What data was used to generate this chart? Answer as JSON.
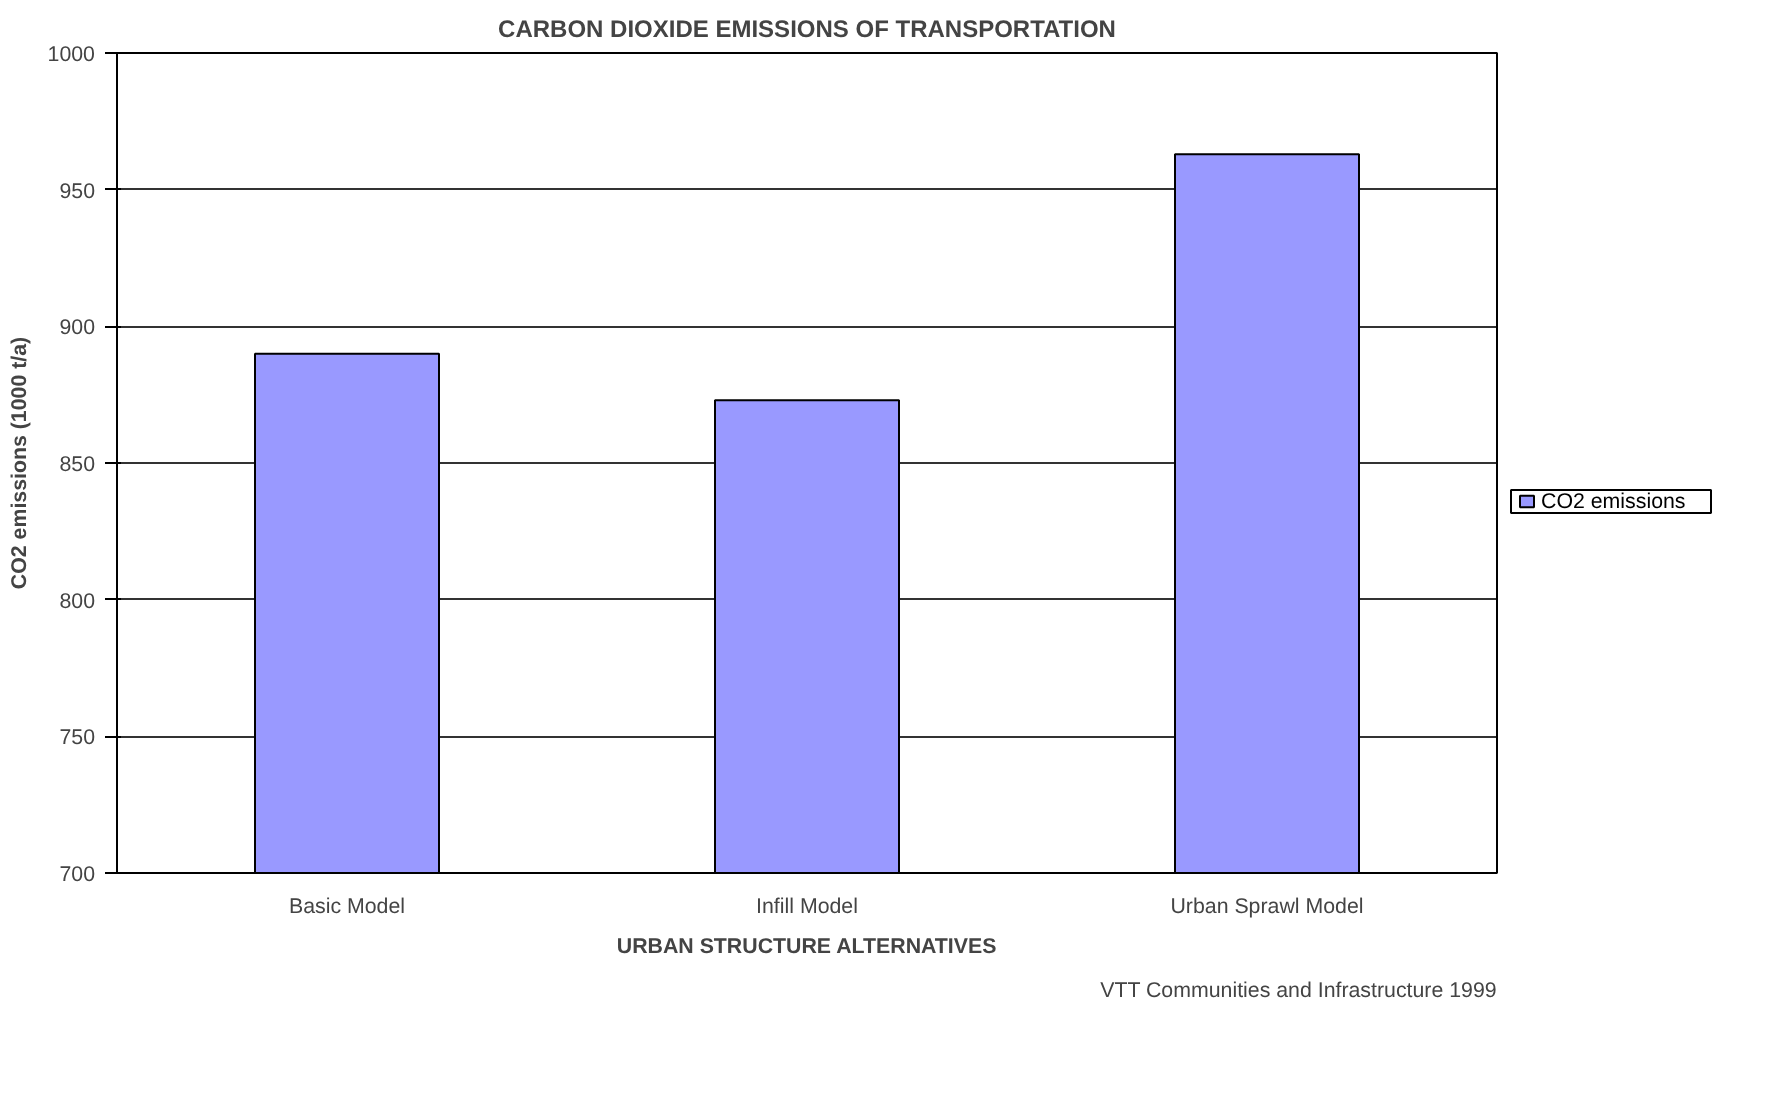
{
  "chart_data": {
    "type": "bar",
    "title": "CARBON DIOXIDE EMISSIONS OF TRANSPORTATION",
    "xlabel": "URBAN STRUCTURE ALTERNATIVES",
    "ylabel": "CO2 emissions (1000 t/a)",
    "categories": [
      "Basic Model",
      "Infill Model",
      "Urban Sprawl Model"
    ],
    "series": [
      {
        "name": "CO2 emissions",
        "color": "#9999ff",
        "values": [
          890,
          873,
          963
        ]
      }
    ],
    "ylim": [
      700,
      1000
    ],
    "yticks": [
      700,
      750,
      800,
      850,
      900,
      950,
      1000
    ],
    "grid": "y",
    "legend": "right",
    "annotations": [
      "VTT Communities and Infrastructure 1999"
    ]
  }
}
